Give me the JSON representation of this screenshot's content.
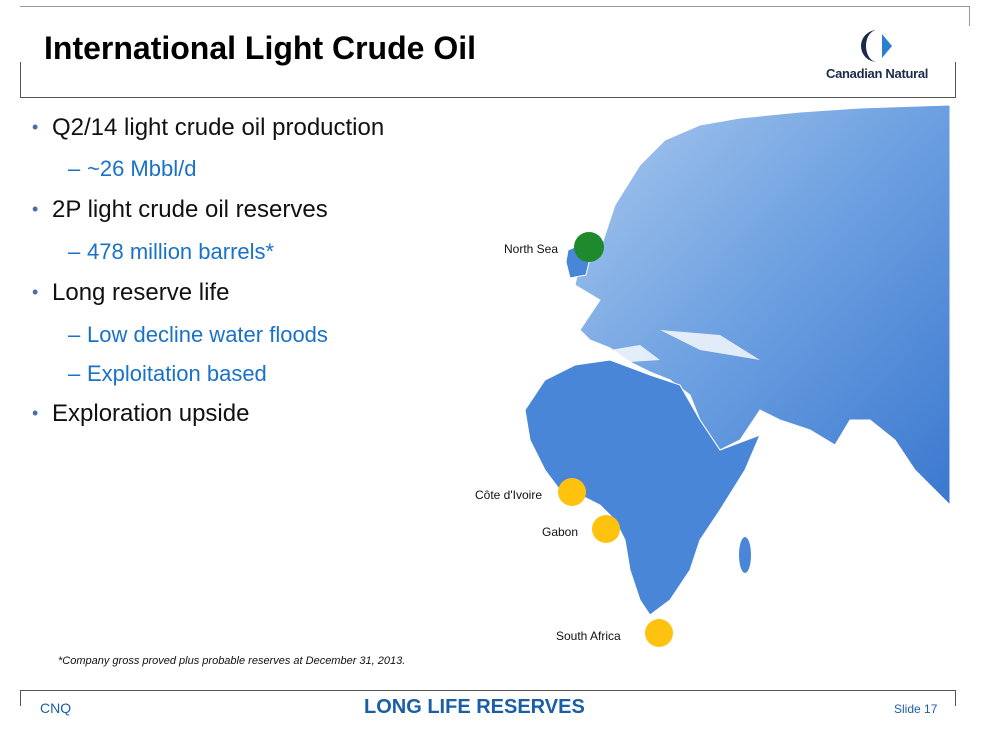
{
  "header": {
    "title": "International Light Crude Oil",
    "logo": "Canadian Natural"
  },
  "bullets": [
    {
      "text": "Q2/14 light crude oil production",
      "sub": [
        "~26 Mbbl/d"
      ]
    },
    {
      "text": "2P light crude oil reserves",
      "sub": [
        "478 million barrels*"
      ]
    },
    {
      "text": "Long reserve life",
      "sub": [
        "Low decline water floods",
        "Exploitation based"
      ]
    },
    {
      "text": "Exploration upside",
      "sub": []
    }
  ],
  "map_labels": [
    "North Sea",
    "Côte d'Ivoire",
    "Gabon",
    "South Africa"
  ],
  "footnote": "*Company gross proved plus probable reserves at December 31, 2013.",
  "footer": {
    "left": "CNQ",
    "center": "LONG LIFE RESERVES",
    "right": "Slide 17"
  }
}
